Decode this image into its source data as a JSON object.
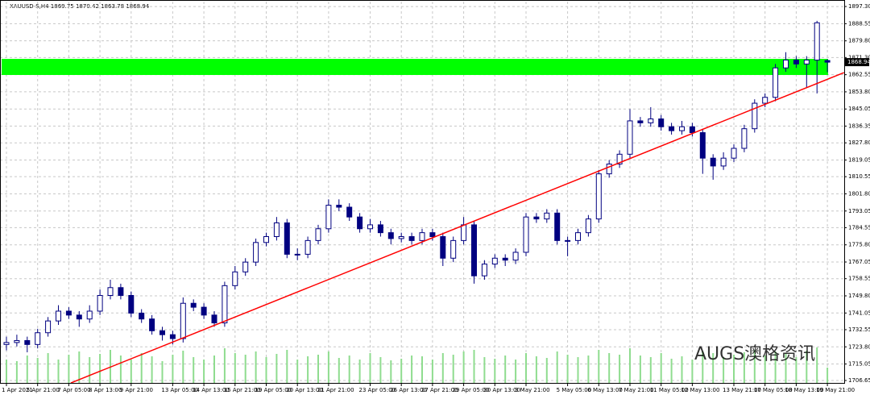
{
  "chart_data": {
    "type": "candlestick",
    "title": "XAUUSD-S,H4  1869.75 1870.42 1863.78 1868.94",
    "categories": [
      "1 Apr 2021",
      null,
      null,
      "5 Apr 21:00",
      null,
      null,
      "7 Apr 05:00",
      null,
      null,
      "8 Apr 13:00",
      null,
      null,
      "9 Apr 21:00",
      null,
      null,
      null,
      "13 Apr 05:00",
      null,
      null,
      "14 Apr 13:00",
      null,
      null,
      "15 Apr 21:00",
      null,
      null,
      "19 Apr 05:00",
      null,
      null,
      "20 Apr 13:00",
      null,
      null,
      "21 Apr 21:00",
      null,
      null,
      null,
      "23 Apr 05:00",
      null,
      null,
      "26 Apr 13:00",
      null,
      null,
      "27 Apr 21:00",
      null,
      null,
      "29 Apr 05:00",
      null,
      null,
      "30 Apr 13:00",
      null,
      null,
      "3 May 21:00",
      null,
      null,
      null,
      "5 May 05:00",
      null,
      null,
      "6 May 13:00",
      null,
      null,
      "7 May 21:00",
      null,
      null,
      "11 May 05:00",
      null,
      null,
      "12 May 13:00",
      null,
      null,
      null,
      "13 May 21:00",
      null,
      null,
      "17 May 05:00",
      null,
      null,
      "18 May 13:00",
      null,
      null,
      "19 May 21:00"
    ],
    "candles": [
      [
        1725,
        1729,
        1722,
        1726
      ],
      [
        1726,
        1730,
        1724,
        1727
      ],
      [
        1727,
        1729,
        1721,
        1725
      ],
      [
        1725,
        1733,
        1723,
        1731
      ],
      [
        1731,
        1739,
        1729,
        1737
      ],
      [
        1737,
        1745,
        1735,
        1742
      ],
      [
        1742,
        1744,
        1738,
        1740
      ],
      [
        1740,
        1742,
        1734,
        1738
      ],
      [
        1738,
        1745,
        1736,
        1742
      ],
      [
        1742,
        1753,
        1740,
        1750
      ],
      [
        1750,
        1758,
        1748,
        1754
      ],
      [
        1754,
        1756,
        1748,
        1750
      ],
      [
        1750,
        1752,
        1739,
        1741
      ],
      [
        1741,
        1743,
        1736,
        1738
      ],
      [
        1738,
        1740,
        1730,
        1732
      ],
      [
        1732,
        1734,
        1727,
        1730
      ],
      [
        1730,
        1732,
        1725,
        1728
      ],
      [
        1728,
        1749,
        1726,
        1746
      ],
      [
        1746,
        1748,
        1742,
        1744
      ],
      [
        1744,
        1746,
        1738,
        1740
      ],
      [
        1740,
        1742,
        1734,
        1736
      ],
      [
        1736,
        1757,
        1734,
        1755
      ],
      [
        1755,
        1765,
        1753,
        1762
      ],
      [
        1762,
        1769,
        1760,
        1767
      ],
      [
        1767,
        1779,
        1765,
        1777
      ],
      [
        1777,
        1782,
        1775,
        1780
      ],
      [
        1780,
        1790,
        1778,
        1787
      ],
      [
        1787,
        1789,
        1769,
        1771
      ],
      [
        1771,
        1774,
        1768,
        1771
      ],
      [
        1771,
        1780,
        1769,
        1778
      ],
      [
        1778,
        1786,
        1776,
        1784
      ],
      [
        1784,
        1799,
        1782,
        1796
      ],
      [
        1796,
        1799,
        1793,
        1795
      ],
      [
        1795,
        1797,
        1788,
        1790
      ],
      [
        1790,
        1792,
        1782,
        1784
      ],
      [
        1784,
        1789,
        1782,
        1786
      ],
      [
        1786,
        1788,
        1780,
        1782
      ],
      [
        1782,
        1784,
        1776,
        1779
      ],
      [
        1779,
        1782,
        1777,
        1780
      ],
      [
        1780,
        1782,
        1776,
        1778
      ],
      [
        1778,
        1784,
        1776,
        1782
      ],
      [
        1782,
        1784,
        1778,
        1780
      ],
      [
        1780,
        1782,
        1765,
        1769
      ],
      [
        1769,
        1780,
        1767,
        1778
      ],
      [
        1778,
        1790,
        1776,
        1786
      ],
      [
        1786,
        1788,
        1756,
        1760
      ],
      [
        1760,
        1768,
        1758,
        1766
      ],
      [
        1766,
        1771,
        1764,
        1769
      ],
      [
        1769,
        1771,
        1765,
        1768
      ],
      [
        1768,
        1774,
        1766,
        1772
      ],
      [
        1772,
        1792,
        1770,
        1790
      ],
      [
        1790,
        1792,
        1787,
        1789
      ],
      [
        1789,
        1794,
        1787,
        1792
      ],
      [
        1792,
        1794,
        1776,
        1778
      ],
      [
        1778,
        1780,
        1770,
        1778
      ],
      [
        1778,
        1784,
        1776,
        1782
      ],
      [
        1782,
        1791,
        1780,
        1789
      ],
      [
        1789,
        1814,
        1787,
        1812
      ],
      [
        1812,
        1819,
        1810,
        1817
      ],
      [
        1817,
        1824,
        1815,
        1822
      ],
      [
        1822,
        1845,
        1820,
        1839
      ],
      [
        1839,
        1841,
        1836,
        1838
      ],
      [
        1838,
        1846,
        1836,
        1840
      ],
      [
        1840,
        1842,
        1834,
        1836
      ],
      [
        1836,
        1838,
        1832,
        1834
      ],
      [
        1834,
        1839,
        1832,
        1836
      ],
      [
        1836,
        1838,
        1831,
        1833
      ],
      [
        1833,
        1835,
        1812,
        1820
      ],
      [
        1820,
        1822,
        1809,
        1816
      ],
      [
        1816,
        1823,
        1814,
        1820
      ],
      [
        1820,
        1827,
        1818,
        1825
      ],
      [
        1825,
        1837,
        1823,
        1835
      ],
      [
        1835,
        1850,
        1833,
        1848
      ],
      [
        1848,
        1853,
        1846,
        1851
      ],
      [
        1851,
        1868,
        1849,
        1866
      ],
      [
        1866,
        1874,
        1864,
        1870
      ],
      [
        1870,
        1872,
        1866,
        1868
      ],
      [
        1868,
        1872,
        1856,
        1870
      ],
      [
        1870,
        1890,
        1853,
        1889
      ],
      [
        1869.75,
        1870.42,
        1863.78,
        1868.94
      ]
    ],
    "volumes": [
      30,
      28,
      35,
      32,
      38,
      30,
      36,
      40,
      33,
      37,
      42,
      35,
      30,
      38,
      34,
      28,
      36,
      41,
      33,
      30,
      35,
      44,
      38,
      36,
      40,
      33,
      37,
      42,
      30,
      34,
      36,
      40,
      32,
      35,
      30,
      38,
      33,
      29,
      31,
      35,
      34,
      30,
      38,
      36,
      40,
      42,
      33,
      31,
      35,
      30,
      38,
      34,
      32,
      40,
      36,
      33,
      35,
      42,
      38,
      36,
      44,
      35,
      33,
      38,
      31,
      34,
      30,
      40,
      38,
      33,
      36,
      39,
      42,
      35,
      40,
      38,
      33,
      41,
      45,
      20
    ],
    "volume_color": "#8fdc8f",
    "bull_color": "#ffffff",
    "bear_color": "#000080",
    "wick_color": "#000080",
    "zone": {
      "range": [
        1862.4,
        1870.6
      ],
      "color": "#00ff00"
    },
    "trendline": {
      "x": [
        6.2,
        80.6
      ],
      "y": [
        1705.4,
        1863.6
      ],
      "color": "#ff0000"
    },
    "ylim": [
      1705.0,
      1899.8
    ],
    "yticks": [
      {
        "value": 1897.3,
        "label": "1897.30"
      },
      1888.55,
      {
        "value": 1879.8,
        "label": "1879.80"
      },
      {
        "value": 1871.3,
        "label": "1871.30"
      },
      1862.55,
      {
        "value": 1853.8,
        "label": "1853.80"
      },
      1845.05,
      1836.35,
      {
        "value": 1827.8,
        "label": "1827.80"
      },
      1819.05,
      1810.55,
      {
        "value": 1801.8,
        "label": "1801.80"
      },
      1793.05,
      1784.55,
      {
        "value": 1775.8,
        "label": "1775.80"
      },
      1767.05,
      1758.55,
      {
        "value": 1749.8,
        "label": "1749.80"
      },
      1741.05,
      1732.55,
      {
        "value": 1723.8,
        "label": "1723.80"
      },
      1715.05,
      1706.65
    ],
    "grid": true,
    "watermark": "AUGS澳格资讯"
  }
}
